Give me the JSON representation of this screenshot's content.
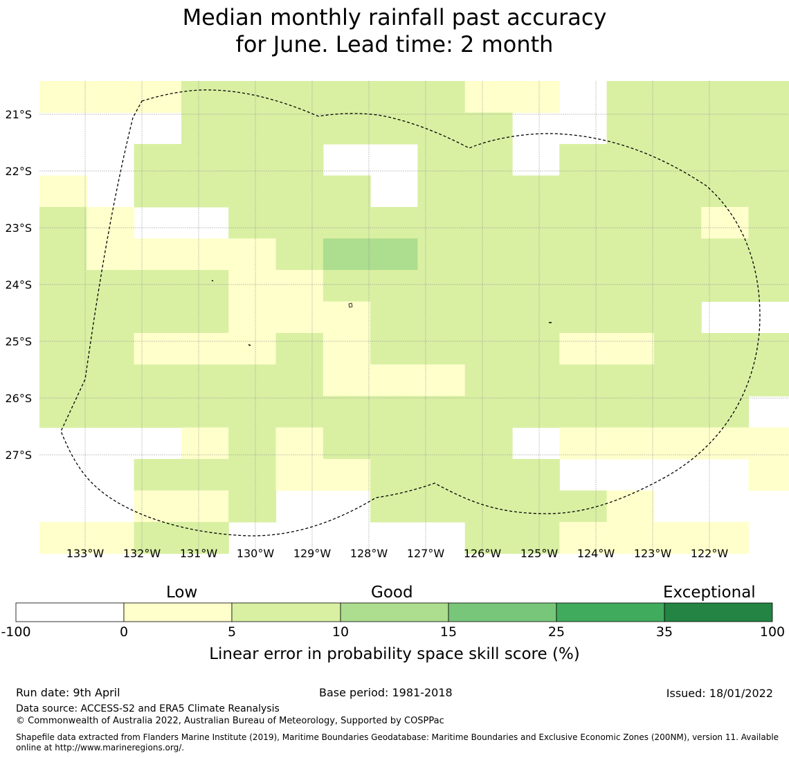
{
  "title": {
    "line1": "Median monthly rainfall past accuracy",
    "line2": "for June. Lead time: 2 month"
  },
  "map": {
    "lon_labels": [
      "133°W",
      "132°W",
      "131°W",
      "130°W",
      "129°W",
      "128°W",
      "127°W",
      "126°W",
      "125°W",
      "124°W",
      "123°W",
      "122°W"
    ],
    "lat_labels": [
      "21°S",
      "22°S",
      "23°S",
      "24°S",
      "25°S",
      "26°S",
      "27°S"
    ],
    "lon_values": [
      -133,
      -132,
      -131,
      -130,
      -129,
      -128,
      -127,
      -126,
      -125,
      -124,
      -123,
      -122
    ],
    "lat_values": [
      -21,
      -22,
      -23,
      -24,
      -25,
      -26,
      -27
    ],
    "grid_columns": 16,
    "grid_rows": 15,
    "grid_levels": [
      "1112222221102222",
      "0002222222002222",
      "0022220022022222",
      "1022222022222222",
      "2100222222222212",
      "2111123322222222",
      "2222112222222222",
      "2222111222222200",
      "2211121222211222",
      "2222221112222222",
      "2222222222222220",
      "0001212222011111",
      "0022211222200001",
      "0011200222221000",
      "1122000002211110"
    ],
    "level_colors": [
      "#ffffff",
      "#ffffcc",
      "#d9f0a3",
      "#addd8e"
    ],
    "boundary_color": "#000000",
    "gridline_color": "#8c8c8c"
  },
  "colorbar": {
    "category_labels": [
      "Low",
      "Good",
      "Exceptional"
    ],
    "ticks": [
      "-100",
      "0",
      "5",
      "10",
      "15",
      "25",
      "35",
      "100"
    ],
    "colors": [
      "#ffffff",
      "#ffffcc",
      "#d9f0a3",
      "#addd8e",
      "#78c679",
      "#41ab5d",
      "#238443"
    ],
    "title": "Linear error in probability space skill score (%)"
  },
  "footer": {
    "run_date": "Run date: 9th April",
    "base_period": "Base period: 1981-2018",
    "issued": "Issued: 18/01/2022",
    "data_source": "Data source: ACCESS-S2 and ERA5 Climate Reanalysis",
    "copyright": "© Commonwealth of Australia 2022, Australian Bureau of Meteorology, Supported by COSPPac",
    "shapefile_line1": "Shapefile data extracted from Flanders Marine Institute (2019), Maritime Boundaries Geodatabase: Maritime Boundaries and Exclusive Economic Zones (200NM), version 11. Available",
    "shapefile_line2": "online at http://www.marineregions.org/."
  }
}
